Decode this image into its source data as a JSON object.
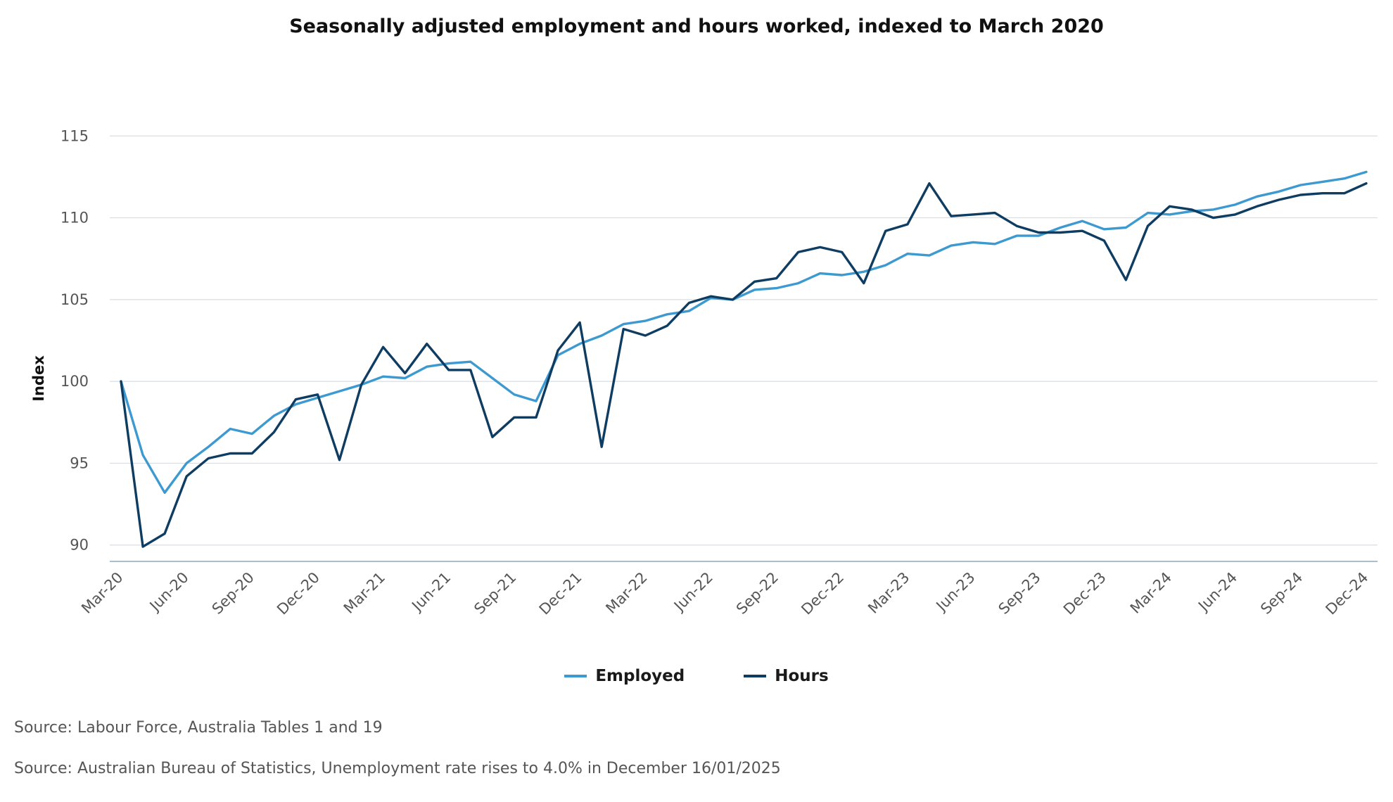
{
  "chart_data": {
    "type": "line",
    "title": "Seasonally adjusted employment and hours worked, indexed to March 2020",
    "xlabel": "",
    "ylabel": "Index",
    "ylim": [
      89,
      116
    ],
    "yticks": [
      90,
      95,
      100,
      105,
      110,
      115
    ],
    "x_tick_labels": [
      "Mar-20",
      "Jun-20",
      "Sep-20",
      "Dec-20",
      "Mar-21",
      "Jun-21",
      "Sep-21",
      "Dec-21",
      "Mar-22",
      "Jun-22",
      "Sep-22",
      "Dec-22",
      "Mar-23",
      "Jun-23",
      "Sep-23",
      "Dec-23",
      "Mar-24",
      "Jun-24",
      "Sep-24",
      "Dec-24"
    ],
    "x": [
      "Mar-20",
      "Apr-20",
      "May-20",
      "Jun-20",
      "Jul-20",
      "Aug-20",
      "Sep-20",
      "Oct-20",
      "Nov-20",
      "Dec-20",
      "Jan-21",
      "Feb-21",
      "Mar-21",
      "Apr-21",
      "May-21",
      "Jun-21",
      "Jul-21",
      "Aug-21",
      "Sep-21",
      "Oct-21",
      "Nov-21",
      "Dec-21",
      "Jan-22",
      "Feb-22",
      "Mar-22",
      "Apr-22",
      "May-22",
      "Jun-22",
      "Jul-22",
      "Aug-22",
      "Sep-22",
      "Oct-22",
      "Nov-22",
      "Dec-22",
      "Jan-23",
      "Feb-23",
      "Mar-23",
      "Apr-23",
      "May-23",
      "Jun-23",
      "Jul-23",
      "Aug-23",
      "Sep-23",
      "Oct-23",
      "Nov-23",
      "Dec-23",
      "Jan-24",
      "Feb-24",
      "Mar-24",
      "Apr-24",
      "May-24",
      "Jun-24",
      "Jul-24",
      "Aug-24",
      "Sep-24",
      "Oct-24",
      "Nov-24",
      "Dec-24"
    ],
    "series": [
      {
        "name": "Employed",
        "color": "#3d9ad1",
        "values": [
          100.0,
          95.5,
          93.2,
          95.0,
          96.0,
          97.1,
          96.8,
          97.9,
          98.6,
          99.0,
          99.4,
          99.8,
          100.3,
          100.2,
          100.9,
          101.1,
          101.2,
          100.2,
          99.2,
          98.8,
          101.6,
          102.3,
          102.8,
          103.5,
          103.7,
          104.1,
          104.3,
          105.1,
          105.0,
          105.6,
          105.7,
          106.0,
          106.6,
          106.5,
          106.7,
          107.1,
          107.8,
          107.7,
          108.3,
          108.5,
          108.4,
          108.9,
          108.9,
          109.4,
          109.8,
          109.3,
          109.4,
          110.3,
          110.2,
          110.4,
          110.5,
          110.8,
          111.3,
          111.6,
          112.0,
          112.2,
          112.4,
          112.8
        ]
      },
      {
        "name": "Hours",
        "color": "#0f3d62",
        "values": [
          100.0,
          89.9,
          90.7,
          94.2,
          95.3,
          95.6,
          95.6,
          96.9,
          98.9,
          99.2,
          95.2,
          99.8,
          102.1,
          100.5,
          102.3,
          100.7,
          100.7,
          96.6,
          97.8,
          97.8,
          101.9,
          103.6,
          96.0,
          103.2,
          102.8,
          103.4,
          104.8,
          105.2,
          105.0,
          106.1,
          106.3,
          107.9,
          108.2,
          107.9,
          106.0,
          109.2,
          109.6,
          112.1,
          110.1,
          110.2,
          110.3,
          109.5,
          109.1,
          109.1,
          109.2,
          108.6,
          106.2,
          109.5,
          110.7,
          110.5,
          110.0,
          110.2,
          110.7,
          111.1,
          111.4,
          111.5,
          111.5,
          112.1
        ]
      }
    ],
    "legend": [
      "Employed",
      "Hours"
    ],
    "legend_position": "bottom-center",
    "grid": true
  },
  "sources": [
    "Source: Labour Force, Australia Tables 1 and 19",
    "Source: Australian Bureau of Statistics, Unemployment rate rises to 4.0% in December 16/01/2025"
  ]
}
